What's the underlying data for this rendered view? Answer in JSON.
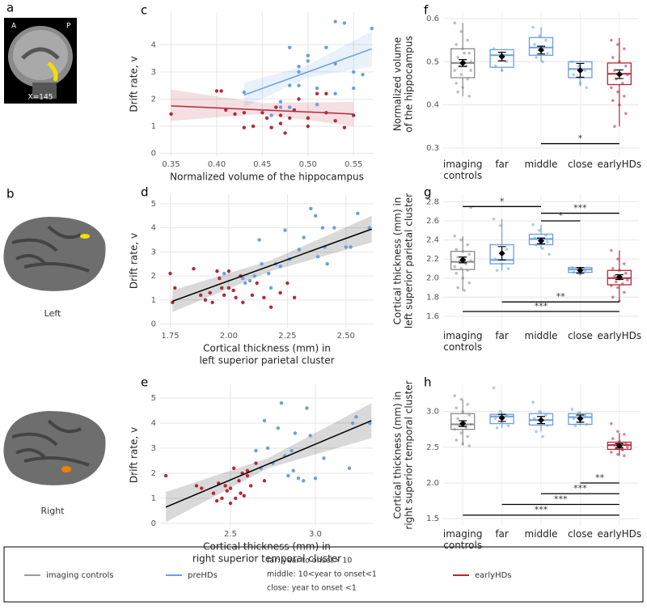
{
  "images": [
    {
      "panel": "a",
      "labels": [
        "A",
        "P",
        "X=145"
      ]
    },
    {
      "panel": "b",
      "labels": [
        "Left",
        "Right"
      ]
    }
  ],
  "legend": {
    "entries": [
      {
        "name": "imaging controls",
        "color": "#9a9a9a"
      },
      {
        "name": "preHDs",
        "color": "#6a9fe0"
      },
      {
        "name": "earlyHDs",
        "color": "#b5283a"
      }
    ],
    "notes": [
      "far: year to onset> 10",
      "middle: 10<year to onset<1",
      "close: year to onset <1"
    ]
  },
  "chart_data": [
    {
      "type": "scatter",
      "panel": "c",
      "ylabel": [
        "Drift rate, v"
      ],
      "xlabel": [
        "Normalized volume of the hippocampus"
      ],
      "xlim": [
        0.338,
        0.572
      ],
      "ylim": [
        -0.1,
        5.2
      ],
      "xticks": [
        0.35,
        {
          "value": 0.4,
          "label": "0.40"
        },
        0.45,
        {
          "value": 0.5,
          "label": "0.50"
        },
        0.55
      ],
      "yticks": [
        0,
        1,
        2,
        3,
        4
      ],
      "grid": true,
      "series": [
        {
          "color": "#6a9fe0",
          "x": [
            0.43,
            0.46,
            0.47,
            0.47,
            0.48,
            0.48,
            0.49,
            0.49,
            0.5,
            0.5,
            0.51,
            0.52,
            0.53,
            0.53,
            0.54,
            0.55,
            0.55,
            0.56,
            0.57,
            0.51,
            0.48,
            0.53,
            0.49
          ],
          "y": [
            2.25,
            1.4,
            1.9,
            1.7,
            2.5,
            3.9,
            3.2,
            2.5,
            3.6,
            3.4,
            2.4,
            3.9,
            4.85,
            3.3,
            4.8,
            3.0,
            2.4,
            2.9,
            4.6,
            1.8,
            1.7,
            2.2,
            3.0
          ]
        },
        {
          "color": "#b5283a",
          "x": [
            0.35,
            0.4,
            0.405,
            0.41,
            0.42,
            0.43,
            0.44,
            0.45,
            0.455,
            0.46,
            0.465,
            0.47,
            0.47,
            0.475,
            0.48,
            0.485,
            0.49,
            0.5,
            0.51,
            0.52,
            0.52,
            0.53,
            0.54,
            0.55,
            0.43,
            0.5
          ],
          "y": [
            1.45,
            2.3,
            2.3,
            1.6,
            1.45,
            1.5,
            1.0,
            1.5,
            1.3,
            0.95,
            1.7,
            1.4,
            1.1,
            0.75,
            1.3,
            1.6,
            2.0,
            1.3,
            2.2,
            1.5,
            2.2,
            1.2,
            0.95,
            1.4,
            0.95,
            1.0
          ]
        }
      ],
      "fits": [
        {
          "color": "#6a9fe0",
          "x": [
            0.43,
            0.57
          ],
          "y": [
            2.15,
            3.85
          ],
          "band_x": [
            0.43,
            0.5,
            0.57
          ],
          "band_lo": [
            1.7,
            2.8,
            3.2
          ],
          "band_hi": [
            2.6,
            3.25,
            4.5
          ]
        },
        {
          "color": "#b5283a",
          "x": [
            0.35,
            0.55
          ],
          "y": [
            1.75,
            1.45
          ],
          "band_x": [
            0.35,
            0.45,
            0.55
          ],
          "band_lo": [
            1.2,
            1.45,
            1.0
          ],
          "band_hi": [
            2.35,
            1.85,
            1.9
          ]
        }
      ]
    },
    {
      "type": "scatter",
      "panel": "d",
      "ylabel": [
        "Drift rate, v"
      ],
      "xlabel": [
        "Cortical thickness (mm) in",
        "left superior parietal cluster"
      ],
      "xlim": [
        1.707,
        2.618
      ],
      "ylim": [
        -0.15,
        5.4
      ],
      "xticks": [
        1.75,
        {
          "value": 2.0,
          "label": "2.00"
        },
        2.25,
        {
          "value": 2.5,
          "label": "2.50"
        }
      ],
      "yticks": [
        0,
        1,
        2,
        3,
        4,
        5
      ],
      "grid": true,
      "series": [
        {
          "color": "#6a9fe0",
          "x": [
            1.98,
            2.06,
            2.07,
            2.09,
            2.11,
            2.13,
            2.14,
            2.17,
            2.18,
            2.2,
            2.22,
            2.24,
            2.26,
            2.3,
            2.32,
            2.35,
            2.37,
            2.38,
            2.4,
            2.41,
            2.42,
            2.45,
            2.5,
            2.52,
            2.55,
            2.6
          ],
          "y": [
            2.1,
            1.9,
            1.7,
            1.8,
            2.0,
            3.5,
            2.5,
            2.1,
            1.5,
            2.5,
            2.4,
            3.9,
            2.7,
            3.1,
            3.6,
            4.8,
            4.5,
            2.8,
            4.0,
            3.2,
            2.5,
            4.0,
            3.2,
            3.2,
            4.6,
            4.0
          ]
        },
        {
          "color": "#b5283a",
          "x": [
            1.75,
            1.76,
            1.77,
            1.85,
            1.88,
            1.9,
            1.92,
            1.93,
            1.95,
            1.96,
            1.97,
            1.98,
            2.0,
            2.0,
            2.02,
            2.03,
            2.05,
            2.06,
            2.1,
            2.12,
            2.15,
            2.18,
            2.22,
            2.25,
            2.28
          ],
          "y": [
            2.1,
            0.9,
            1.5,
            2.3,
            1.2,
            1.0,
            1.3,
            0.9,
            2.2,
            1.9,
            1.5,
            1.2,
            1.5,
            2.2,
            1.4,
            1.1,
            2.0,
            0.9,
            1.2,
            1.7,
            1.1,
            0.7,
            1.3,
            1.7,
            1.1
          ]
        }
      ],
      "fits": [
        {
          "color": "#000000",
          "x": [
            1.76,
            2.61
          ],
          "y": [
            0.95,
            3.95
          ],
          "band_x": [
            1.76,
            2.18,
            2.61
          ],
          "band_lo": [
            0.5,
            2.2,
            3.4
          ],
          "band_hi": [
            1.4,
            2.65,
            4.5
          ]
        }
      ]
    },
    {
      "type": "scatter",
      "panel": "e",
      "ylabel": [
        "Drift rate, v"
      ],
      "xlabel": [
        "Cortical thickness (mm) in",
        "right superior temporal cluster"
      ],
      "xlim": [
        2.086,
        3.343
      ],
      "ylim": [
        -0.1,
        5.55
      ],
      "xticks": [
        2.5,
        {
          "value": 3.0,
          "label": "3.0"
        }
      ],
      "yticks": [
        0,
        1,
        2,
        3,
        4,
        5
      ],
      "grid": true,
      "series": [
        {
          "color": "#6a9fe0",
          "x": [
            2.75,
            2.7,
            2.78,
            2.8,
            2.84,
            2.86,
            2.87,
            2.9,
            2.93,
            2.95,
            2.97,
            3.0,
            3.05,
            3.2,
            3.22,
            3.24,
            3.32,
            2.72,
            2.82,
            2.65,
            2.88,
            2.68
          ],
          "y": [
            2.4,
            4.1,
            3.8,
            4.8,
            1.9,
            2.9,
            2.1,
            1.8,
            1.7,
            4.6,
            3.5,
            1.8,
            2.6,
            2.2,
            4.0,
            4.25,
            4.0,
            3.0,
            2.7,
            2.9,
            3.6,
            2.2
          ]
        },
        {
          "color": "#b5283a",
          "x": [
            2.12,
            2.3,
            2.33,
            2.4,
            2.42,
            2.45,
            2.47,
            2.5,
            2.5,
            2.52,
            2.55,
            2.57,
            2.58,
            2.6,
            2.62,
            2.65,
            2.48,
            2.43,
            2.53,
            2.6,
            2.7,
            2.56
          ],
          "y": [
            1.9,
            1.5,
            1.4,
            1.2,
            0.9,
            1.0,
            1.5,
            1.4,
            0.8,
            2.2,
            1.7,
            2.0,
            1.1,
            2.1,
            1.5,
            2.4,
            1.3,
            1.6,
            1.0,
            1.9,
            1.7,
            1.2
          ]
        }
      ],
      "fits": [
        {
          "color": "#000000",
          "x": [
            2.12,
            3.33
          ],
          "y": [
            0.65,
            4.1
          ],
          "band_x": [
            2.12,
            2.72,
            3.33
          ],
          "band_lo": [
            0.05,
            2.2,
            3.4
          ],
          "band_hi": [
            1.25,
            2.6,
            4.8
          ]
        }
      ]
    },
    {
      "type": "box",
      "panel": "f",
      "ylabel": [
        "Normalized volume",
        "of the hippocampus"
      ],
      "categories": [
        "imaging controls",
        "far",
        "middle",
        "close",
        "earlyHDs"
      ],
      "colors": [
        "#8a8a8a",
        "#6a9fe0",
        "#6a9fe0",
        "#6a9fe0",
        "#b5283a"
      ],
      "ylim": [
        0.281,
        0.615
      ],
      "yticks": [
        0.3,
        0.4,
        0.5,
        0.6
      ],
      "grid": true,
      "boxes": [
        {
          "whislo": 0.42,
          "q1": 0.463,
          "med": 0.497,
          "q3": 0.53,
          "whishi": 0.59,
          "mean": 0.497,
          "se": 0.008,
          "points": [
            0.59,
            0.57,
            0.55,
            0.54,
            0.53,
            0.52,
            0.51,
            0.5,
            0.5,
            0.49,
            0.49,
            0.48,
            0.47,
            0.46,
            0.45,
            0.44,
            0.42,
            0.43,
            0.52,
            0.48
          ]
        },
        {
          "whislo": 0.477,
          "q1": 0.487,
          "med": 0.515,
          "q3": 0.528,
          "whishi": 0.528,
          "mean": 0.512,
          "se": 0.01,
          "points": [
            0.53,
            0.52,
            0.5,
            0.49,
            0.48
          ]
        },
        {
          "whislo": 0.5,
          "q1": 0.515,
          "med": 0.533,
          "q3": 0.556,
          "whishi": 0.58,
          "mean": 0.527,
          "se": 0.009,
          "points": [
            0.58,
            0.56,
            0.55,
            0.54,
            0.53,
            0.52,
            0.51,
            0.5
          ]
        },
        {
          "whislo": 0.443,
          "q1": 0.463,
          "med": 0.483,
          "q3": 0.5,
          "whishi": 0.502,
          "mean": 0.48,
          "se": 0.016,
          "points": [
            0.5,
            0.49,
            0.48,
            0.47,
            0.45,
            0.44
          ]
        },
        {
          "whislo": 0.35,
          "q1": 0.447,
          "med": 0.472,
          "q3": 0.497,
          "whishi": 0.555,
          "mean": 0.471,
          "se": 0.01,
          "points": [
            0.55,
            0.54,
            0.53,
            0.51,
            0.5,
            0.49,
            0.48,
            0.47,
            0.47,
            0.46,
            0.45,
            0.44,
            0.43,
            0.42,
            0.41,
            0.4,
            0.38,
            0.35
          ]
        }
      ],
      "significance": [
        {
          "from": 2,
          "to": 4,
          "y": 0.31,
          "label": "*"
        }
      ]
    },
    {
      "type": "box",
      "panel": "g",
      "ylabel": [
        "Cortical thickness (mm) in",
        "left superior parietal cluster"
      ],
      "categories": [
        "imaging controls",
        "far",
        "middle",
        "close",
        "earlyHDs"
      ],
      "colors": [
        "#8a8a8a",
        "#6a9fe0",
        "#6a9fe0",
        "#6a9fe0",
        "#b5283a"
      ],
      "ylim": [
        1.48,
        2.88
      ],
      "yticks": [
        1.6,
        1.8,
        {
          "value": 2.0,
          "label": "2.0"
        },
        2.2,
        2.4,
        2.6,
        2.8
      ],
      "grid": true,
      "boxes": [
        {
          "whislo": 1.87,
          "q1": 2.09,
          "med": 2.17,
          "q3": 2.28,
          "whishi": 2.44,
          "mean": 2.19,
          "se": 0.03,
          "points": [
            2.44,
            2.4,
            2.35,
            2.3,
            2.28,
            2.25,
            2.22,
            2.2,
            2.18,
            2.17,
            2.15,
            2.12,
            2.1,
            2.08,
            2.05,
            2.0,
            1.95,
            1.9,
            1.87,
            2.74
          ]
        },
        {
          "whislo": 2.08,
          "q1": 2.15,
          "med": 2.19,
          "q3": 2.35,
          "whishi": 2.62,
          "mean": 2.26,
          "se": 0.07,
          "points": [
            2.62,
            2.55,
            2.3,
            2.2,
            2.15,
            2.1,
            2.08
          ]
        },
        {
          "whislo": 2.31,
          "q1": 2.35,
          "med": 2.41,
          "q3": 2.46,
          "whishi": 2.56,
          "mean": 2.39,
          "se": 0.03,
          "points": [
            2.56,
            2.5,
            2.45,
            2.42,
            2.4,
            2.38,
            2.35,
            2.31,
            2.25
          ]
        },
        {
          "whislo": 2.04,
          "q1": 2.06,
          "med": 2.09,
          "q3": 2.11,
          "whishi": 2.11,
          "mean": 2.08,
          "se": 0.03,
          "points": [
            2.11,
            2.1,
            2.08,
            2.06,
            2.04
          ]
        },
        {
          "whislo": 1.76,
          "q1": 1.93,
          "med": 2.0,
          "q3": 2.08,
          "whishi": 2.29,
          "mean": 2.01,
          "se": 0.025,
          "points": [
            2.29,
            2.2,
            2.15,
            2.1,
            2.08,
            2.05,
            2.02,
            2.0,
            1.98,
            1.96,
            1.94,
            1.92,
            1.9,
            1.85,
            1.8,
            1.76
          ]
        }
      ],
      "significance": [
        {
          "from": 0,
          "to": 2,
          "y": 2.75,
          "label": "*"
        },
        {
          "from": 2,
          "to": 4,
          "y": 2.68,
          "label": "***"
        },
        {
          "from": 2,
          "to": 3,
          "y": 2.6,
          "label": "*"
        },
        {
          "from": 1,
          "to": 4,
          "y": 1.75,
          "label": "**"
        },
        {
          "from": 0,
          "to": 4,
          "y": 1.65,
          "label": "***"
        }
      ]
    },
    {
      "type": "box",
      "panel": "h",
      "ylabel": [
        "Cortical thickness (mm) in",
        "right superior temporal cluster"
      ],
      "categories": [
        "imaging controls",
        "far",
        "middle",
        "close",
        "earlyHDs"
      ],
      "colors": [
        "#8a8a8a",
        "#6a9fe0",
        "#6a9fe0",
        "#6a9fe0",
        "#b5283a"
      ],
      "ylim": [
        1.4,
        3.38
      ],
      "yticks": [
        1.5,
        {
          "value": 2.0,
          "label": "2.0"
        },
        2.5,
        {
          "value": 3.0,
          "label": "3.0"
        }
      ],
      "grid": true,
      "boxes": [
        {
          "whislo": 2.52,
          "q1": 2.75,
          "med": 2.82,
          "q3": 2.97,
          "whishi": 3.17,
          "mean": 2.83,
          "se": 0.04,
          "points": [
            3.22,
            3.17,
            3.1,
            3.05,
            3.0,
            2.95,
            2.9,
            2.85,
            2.82,
            2.8,
            2.78,
            2.75,
            2.7,
            2.65,
            2.6,
            2.55,
            2.52
          ]
        },
        {
          "whislo": 2.77,
          "q1": 2.83,
          "med": 2.93,
          "q3": 2.96,
          "whishi": 3.0,
          "mean": 2.91,
          "se": 0.05,
          "points": [
            3.33,
            3.0,
            2.95,
            2.9,
            2.85,
            2.8,
            2.77
          ]
        },
        {
          "whislo": 2.72,
          "q1": 2.81,
          "med": 2.88,
          "q3": 2.97,
          "whishi": 3.0,
          "mean": 2.88,
          "se": 0.05,
          "points": [
            3.13,
            3.0,
            2.95,
            2.9,
            2.85,
            2.8,
            2.72,
            2.65
          ]
        },
        {
          "whislo": 2.8,
          "q1": 2.82,
          "med": 2.92,
          "q3": 2.97,
          "whishi": 3.0,
          "mean": 2.9,
          "se": 0.05,
          "points": [
            3.03,
            2.98,
            2.95,
            2.9,
            2.85,
            2.82,
            2.8
          ]
        },
        {
          "whislo": 2.38,
          "q1": 2.47,
          "med": 2.53,
          "q3": 2.57,
          "whishi": 2.7,
          "mean": 2.52,
          "se": 0.03,
          "points": [
            2.83,
            2.72,
            2.68,
            2.62,
            2.58,
            2.55,
            2.53,
            2.51,
            2.5,
            2.48,
            2.46,
            2.43,
            2.4,
            2.38
          ]
        }
      ],
      "significance": [
        {
          "from": 3,
          "to": 4,
          "y": 2.0,
          "label": "**"
        },
        {
          "from": 2,
          "to": 4,
          "y": 1.85,
          "label": "***"
        },
        {
          "from": 1,
          "to": 4,
          "y": 1.7,
          "label": "***"
        },
        {
          "from": 0,
          "to": 4,
          "y": 1.55,
          "label": "***"
        }
      ]
    }
  ]
}
